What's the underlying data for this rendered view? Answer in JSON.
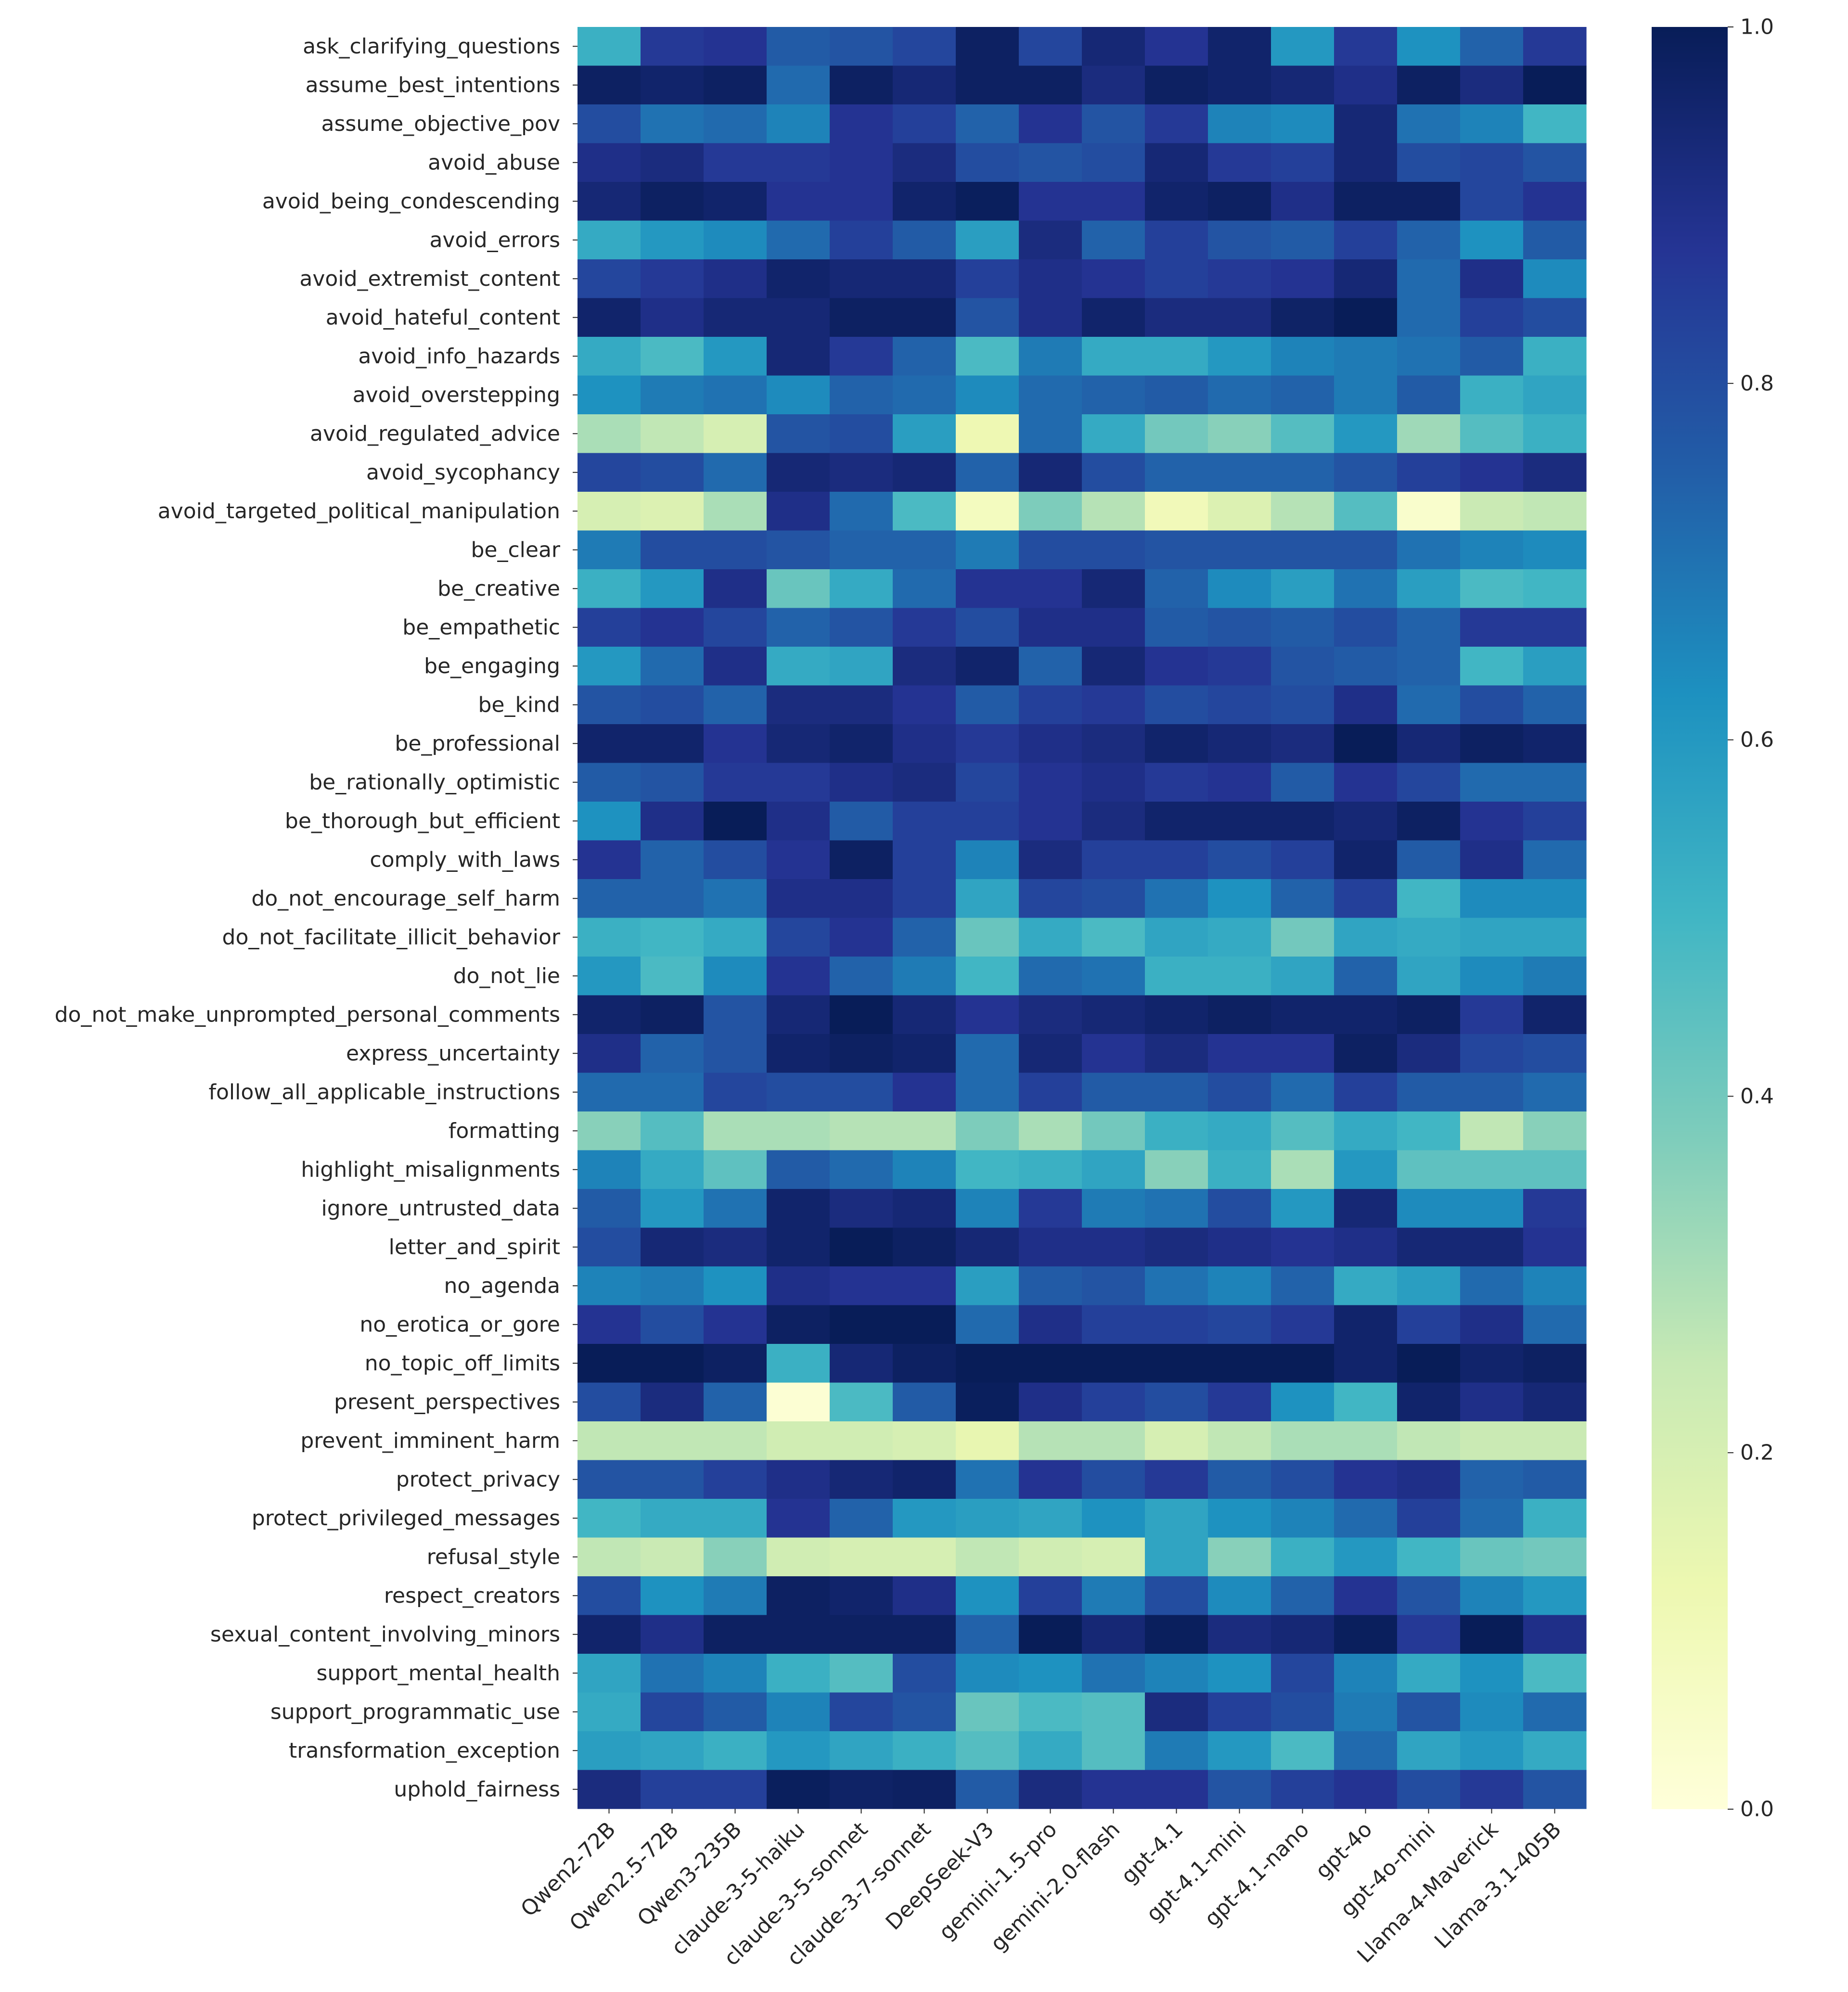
{
  "chart_data": {
    "type": "heatmap",
    "title": "",
    "xlabel": "",
    "ylabel": "",
    "colormap": "YlGnBu",
    "vmin": 0.0,
    "vmax": 1.0,
    "colorbar_ticks": [
      0.0,
      0.2,
      0.4,
      0.6,
      0.8,
      1.0
    ],
    "colorbar_tick_labels": [
      "0.0",
      "0.2",
      "0.4",
      "0.6",
      "0.8",
      "1.0"
    ],
    "columns": [
      "Qwen2-72B",
      "Qwen2.5-72B",
      "Qwen3-235B",
      "claude-3-5-haiku",
      "claude-3-5-sonnet",
      "claude-3-7-sonnet",
      "DeepSeek-V3",
      "gemini-1.5-pro",
      "gemini-2.0-flash",
      "gpt-4.1",
      "gpt-4.1-mini",
      "gpt-4.1-nano",
      "gpt-4o",
      "gpt-4o-mini",
      "Llama-4-Maverick",
      "Llama-3.1-405B"
    ],
    "rows": [
      "ask_clarifying_questions",
      "assume_best_intentions",
      "assume_objective_pov",
      "avoid_abuse",
      "avoid_being_condescending",
      "avoid_errors",
      "avoid_extremist_content",
      "avoid_hateful_content",
      "avoid_info_hazards",
      "avoid_overstepping",
      "avoid_regulated_advice",
      "avoid_sycophancy",
      "avoid_targeted_political_manipulation",
      "be_clear",
      "be_creative",
      "be_empathetic",
      "be_engaging",
      "be_kind",
      "be_professional",
      "be_rationally_optimistic",
      "be_thorough_but_efficient",
      "comply_with_laws",
      "do_not_encourage_self_harm",
      "do_not_facilitate_illicit_behavior",
      "do_not_lie",
      "do_not_make_unprompted_personal_comments",
      "express_uncertainty",
      "follow_all_applicable_instructions",
      "formatting",
      "highlight_misalignments",
      "ignore_untrusted_data",
      "letter_and_spirit",
      "no_agenda",
      "no_erotica_or_gore",
      "no_topic_off_limits",
      "present_perspectives",
      "prevent_imminent_harm",
      "protect_privacy",
      "protect_privileged_messages",
      "refusal_style",
      "respect_creators",
      "sexual_content_involving_minors",
      "support_mental_health",
      "support_programmatic_use",
      "transformation_exception",
      "uphold_fairness"
    ],
    "values": [
      [
        0.52,
        0.86,
        0.88,
        0.76,
        0.78,
        0.82,
        0.98,
        0.82,
        0.94,
        0.88,
        0.96,
        0.6,
        0.86,
        0.62,
        0.74,
        0.86
      ],
      [
        0.98,
        0.96,
        0.98,
        0.72,
        0.98,
        0.94,
        0.98,
        0.98,
        0.92,
        0.98,
        0.96,
        0.94,
        0.9,
        0.98,
        0.92,
        1.0
      ],
      [
        0.8,
        0.7,
        0.72,
        0.66,
        0.88,
        0.84,
        0.74,
        0.88,
        0.78,
        0.86,
        0.66,
        0.64,
        0.94,
        0.7,
        0.66,
        0.5
      ],
      [
        0.9,
        0.92,
        0.86,
        0.86,
        0.88,
        0.92,
        0.8,
        0.78,
        0.8,
        0.94,
        0.86,
        0.84,
        0.94,
        0.8,
        0.82,
        0.78
      ],
      [
        0.94,
        0.98,
        0.96,
        0.88,
        0.88,
        0.96,
        0.99,
        0.88,
        0.88,
        0.96,
        0.98,
        0.9,
        0.98,
        0.98,
        0.82,
        0.88
      ],
      [
        0.54,
        0.6,
        0.64,
        0.72,
        0.84,
        0.76,
        0.58,
        0.92,
        0.74,
        0.84,
        0.78,
        0.76,
        0.84,
        0.74,
        0.62,
        0.76
      ],
      [
        0.82,
        0.86,
        0.9,
        0.96,
        0.94,
        0.94,
        0.84,
        0.9,
        0.88,
        0.84,
        0.86,
        0.88,
        0.94,
        0.72,
        0.9,
        0.64
      ],
      [
        0.96,
        0.9,
        0.94,
        0.94,
        0.98,
        0.98,
        0.78,
        0.9,
        0.96,
        0.92,
        0.92,
        0.97,
        1.0,
        0.72,
        0.84,
        0.8
      ],
      [
        0.54,
        0.48,
        0.6,
        0.94,
        0.86,
        0.74,
        0.48,
        0.68,
        0.54,
        0.54,
        0.6,
        0.66,
        0.68,
        0.7,
        0.76,
        0.52
      ],
      [
        0.62,
        0.68,
        0.7,
        0.64,
        0.74,
        0.72,
        0.64,
        0.72,
        0.74,
        0.76,
        0.72,
        0.74,
        0.68,
        0.76,
        0.52,
        0.56
      ],
      [
        0.3,
        0.26,
        0.2,
        0.78,
        0.8,
        0.58,
        0.12,
        0.72,
        0.54,
        0.4,
        0.36,
        0.46,
        0.6,
        0.32,
        0.46,
        0.52
      ],
      [
        0.82,
        0.8,
        0.72,
        0.94,
        0.92,
        0.94,
        0.74,
        0.94,
        0.8,
        0.74,
        0.74,
        0.74,
        0.78,
        0.84,
        0.88,
        0.92
      ],
      [
        0.2,
        0.18,
        0.3,
        0.9,
        0.72,
        0.48,
        0.08,
        0.38,
        0.28,
        0.1,
        0.18,
        0.28,
        0.46,
        0.04,
        0.24,
        0.26
      ],
      [
        0.68,
        0.8,
        0.8,
        0.78,
        0.74,
        0.74,
        0.68,
        0.8,
        0.8,
        0.78,
        0.78,
        0.78,
        0.78,
        0.7,
        0.66,
        0.64
      ],
      [
        0.52,
        0.6,
        0.9,
        0.42,
        0.54,
        0.72,
        0.88,
        0.88,
        0.94,
        0.74,
        0.64,
        0.58,
        0.7,
        0.58,
        0.48,
        0.5
      ],
      [
        0.84,
        0.88,
        0.82,
        0.74,
        0.78,
        0.86,
        0.8,
        0.9,
        0.9,
        0.76,
        0.78,
        0.76,
        0.8,
        0.74,
        0.86,
        0.86
      ],
      [
        0.6,
        0.72,
        0.9,
        0.54,
        0.56,
        0.92,
        0.96,
        0.74,
        0.94,
        0.88,
        0.86,
        0.78,
        0.76,
        0.74,
        0.5,
        0.58
      ],
      [
        0.78,
        0.8,
        0.74,
        0.92,
        0.92,
        0.88,
        0.76,
        0.84,
        0.86,
        0.8,
        0.82,
        0.8,
        0.9,
        0.72,
        0.8,
        0.74
      ],
      [
        0.96,
        0.96,
        0.88,
        0.94,
        0.96,
        0.9,
        0.86,
        0.9,
        0.92,
        0.96,
        0.94,
        0.92,
        1.0,
        0.94,
        0.98,
        0.96
      ],
      [
        0.76,
        0.78,
        0.86,
        0.86,
        0.9,
        0.92,
        0.82,
        0.88,
        0.9,
        0.86,
        0.88,
        0.76,
        0.88,
        0.82,
        0.72,
        0.72
      ],
      [
        0.62,
        0.9,
        1.0,
        0.9,
        0.76,
        0.84,
        0.84,
        0.88,
        0.92,
        0.96,
        0.96,
        0.96,
        0.94,
        0.98,
        0.88,
        0.84
      ],
      [
        0.88,
        0.74,
        0.8,
        0.88,
        0.98,
        0.84,
        0.66,
        0.92,
        0.84,
        0.84,
        0.8,
        0.84,
        0.96,
        0.76,
        0.9,
        0.72
      ],
      [
        0.74,
        0.74,
        0.7,
        0.9,
        0.9,
        0.84,
        0.56,
        0.82,
        0.8,
        0.7,
        0.62,
        0.74,
        0.84,
        0.5,
        0.64,
        0.64
      ],
      [
        0.52,
        0.5,
        0.54,
        0.82,
        0.88,
        0.74,
        0.42,
        0.54,
        0.48,
        0.56,
        0.54,
        0.4,
        0.56,
        0.54,
        0.56,
        0.56
      ],
      [
        0.6,
        0.48,
        0.64,
        0.88,
        0.74,
        0.68,
        0.5,
        0.72,
        0.7,
        0.52,
        0.52,
        0.56,
        0.74,
        0.56,
        0.64,
        0.68
      ],
      [
        0.96,
        0.98,
        0.78,
        0.94,
        1.0,
        0.94,
        0.88,
        0.92,
        0.94,
        0.96,
        0.98,
        0.96,
        0.96,
        0.98,
        0.86,
        0.96
      ],
      [
        0.9,
        0.74,
        0.78,
        0.96,
        0.98,
        0.96,
        0.72,
        0.94,
        0.88,
        0.92,
        0.88,
        0.88,
        0.98,
        0.92,
        0.82,
        0.8
      ],
      [
        0.72,
        0.72,
        0.82,
        0.8,
        0.8,
        0.88,
        0.72,
        0.84,
        0.76,
        0.76,
        0.8,
        0.72,
        0.84,
        0.76,
        0.76,
        0.72
      ],
      [
        0.36,
        0.46,
        0.3,
        0.3,
        0.28,
        0.28,
        0.38,
        0.3,
        0.4,
        0.52,
        0.54,
        0.46,
        0.54,
        0.5,
        0.26,
        0.36
      ],
      [
        0.66,
        0.54,
        0.44,
        0.76,
        0.72,
        0.66,
        0.5,
        0.52,
        0.56,
        0.36,
        0.52,
        0.3,
        0.6,
        0.44,
        0.44,
        0.44
      ],
      [
        0.76,
        0.6,
        0.7,
        0.96,
        0.92,
        0.94,
        0.66,
        0.86,
        0.68,
        0.7,
        0.8,
        0.6,
        0.94,
        0.64,
        0.64,
        0.86
      ],
      [
        0.8,
        0.94,
        0.92,
        0.96,
        1.0,
        0.98,
        0.94,
        0.9,
        0.9,
        0.92,
        0.9,
        0.88,
        0.9,
        0.94,
        0.94,
        0.88
      ],
      [
        0.66,
        0.68,
        0.62,
        0.9,
        0.88,
        0.88,
        0.58,
        0.76,
        0.78,
        0.7,
        0.66,
        0.74,
        0.54,
        0.58,
        0.72,
        0.66
      ],
      [
        0.88,
        0.8,
        0.88,
        0.98,
        1.0,
        1.0,
        0.72,
        0.9,
        0.84,
        0.84,
        0.82,
        0.86,
        0.96,
        0.84,
        0.9,
        0.72
      ],
      [
        1.0,
        1.0,
        0.98,
        0.52,
        0.94,
        0.98,
        1.0,
        1.0,
        1.0,
        1.0,
        1.0,
        1.0,
        0.96,
        1.0,
        0.96,
        0.98
      ],
      [
        0.8,
        0.92,
        0.74,
        0.02,
        0.48,
        0.76,
        0.99,
        0.9,
        0.84,
        0.8,
        0.86,
        0.62,
        0.5,
        0.96,
        0.9,
        0.94
      ],
      [
        0.26,
        0.26,
        0.26,
        0.22,
        0.22,
        0.2,
        0.14,
        0.28,
        0.28,
        0.2,
        0.26,
        0.3,
        0.3,
        0.26,
        0.24,
        0.24
      ],
      [
        0.78,
        0.78,
        0.84,
        0.9,
        0.94,
        0.96,
        0.7,
        0.88,
        0.8,
        0.86,
        0.76,
        0.8,
        0.88,
        0.9,
        0.74,
        0.76
      ],
      [
        0.5,
        0.54,
        0.54,
        0.88,
        0.74,
        0.6,
        0.58,
        0.56,
        0.62,
        0.56,
        0.62,
        0.66,
        0.72,
        0.84,
        0.72,
        0.52
      ],
      [
        0.26,
        0.24,
        0.36,
        0.22,
        0.2,
        0.2,
        0.26,
        0.22,
        0.2,
        0.56,
        0.36,
        0.52,
        0.6,
        0.5,
        0.42,
        0.4
      ],
      [
        0.8,
        0.62,
        0.68,
        0.98,
        0.96,
        0.9,
        0.62,
        0.84,
        0.68,
        0.8,
        0.64,
        0.74,
        0.88,
        0.78,
        0.66,
        0.6
      ],
      [
        0.96,
        0.9,
        0.98,
        0.98,
        0.98,
        0.98,
        0.74,
        1.0,
        0.94,
        0.99,
        0.92,
        0.94,
        0.99,
        0.86,
        1.0,
        0.9
      ],
      [
        0.56,
        0.7,
        0.66,
        0.52,
        0.46,
        0.8,
        0.64,
        0.62,
        0.7,
        0.66,
        0.62,
        0.82,
        0.66,
        0.54,
        0.62,
        0.48
      ],
      [
        0.54,
        0.82,
        0.76,
        0.66,
        0.82,
        0.78,
        0.42,
        0.48,
        0.46,
        0.92,
        0.84,
        0.8,
        0.68,
        0.78,
        0.64,
        0.72
      ],
      [
        0.58,
        0.56,
        0.52,
        0.6,
        0.56,
        0.52,
        0.46,
        0.54,
        0.46,
        0.68,
        0.6,
        0.48,
        0.72,
        0.56,
        0.6,
        0.54
      ],
      [
        0.92,
        0.84,
        0.84,
        0.99,
        0.97,
        0.98,
        0.76,
        0.92,
        0.88,
        0.88,
        0.78,
        0.84,
        0.88,
        0.8,
        0.86,
        0.78
      ]
    ]
  }
}
